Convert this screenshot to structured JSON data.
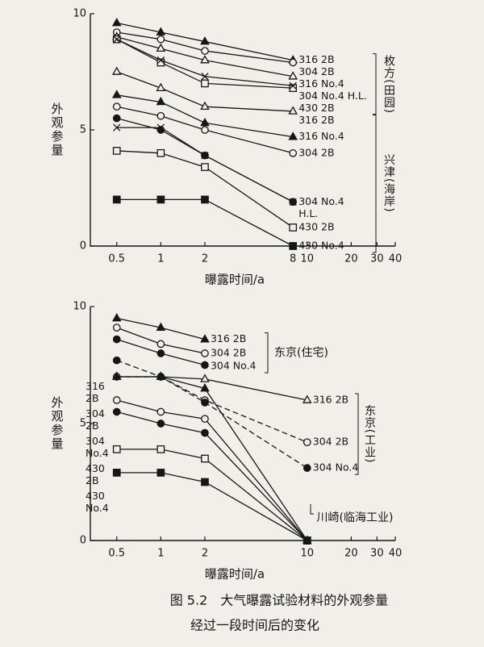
{
  "chart_data": [
    {
      "type": "line",
      "x_label": "曝露时间/a",
      "y_label": "外观参量",
      "xlog": true,
      "xlim": [
        0.33,
        40
      ],
      "ylim": [
        0,
        10
      ],
      "xticks": [
        0.5,
        1,
        2,
        8,
        10,
        20,
        30,
        40
      ],
      "yticks": [
        0,
        5,
        10
      ],
      "groups": [
        {
          "label": "枚方(田园)",
          "series": [
            {
              "name": "316 2B",
              "marker": "triangle",
              "filled": true,
              "x": [
                0.5,
                1,
                2,
                8
              ],
              "values": [
                9.6,
                9.2,
                8.8,
                8.0
              ]
            },
            {
              "name": "304 2B",
              "marker": "circle",
              "filled": false,
              "x": [
                0.5,
                1,
                2,
                8
              ],
              "values": [
                9.2,
                8.9,
                8.4,
                7.9
              ]
            },
            {
              "name": "316 No.4",
              "marker": "triangle",
              "filled": false,
              "x": [
                0.5,
                1,
                2,
                8
              ],
              "values": [
                9.0,
                8.5,
                8.0,
                7.3
              ]
            },
            {
              "name": "430 2B",
              "marker": "square",
              "filled": false,
              "x": [
                0.5,
                1,
                2,
                8
              ],
              "values": [
                8.9,
                7.9,
                7.0,
                6.8
              ]
            },
            {
              "name": "304 No.4 H.L.",
              "marker": "cross",
              "filled": false,
              "x": [
                0.5,
                1,
                2,
                8
              ],
              "values": [
                8.9,
                8.0,
                7.3,
                6.9
              ]
            }
          ]
        },
        {
          "label": "兴津(海岸)",
          "series": [
            {
              "name": "316 2B",
              "marker": "triangle",
              "filled": false,
              "x": [
                0.5,
                1,
                2,
                8
              ],
              "values": [
                7.5,
                6.8,
                6.0,
                5.8
              ]
            },
            {
              "name": "316 No.4",
              "marker": "triangle",
              "filled": true,
              "x": [
                0.5,
                1,
                2,
                8
              ],
              "values": [
                6.5,
                6.2,
                5.3,
                4.7
              ]
            },
            {
              "name": "304 2B",
              "marker": "circle",
              "filled": false,
              "x": [
                0.5,
                1,
                2,
                8
              ],
              "values": [
                6.0,
                5.6,
                5.0,
                4.0
              ]
            },
            {
              "name": "304 No.4",
              "marker": "circle",
              "filled": true,
              "x": [
                0.5,
                1,
                2,
                8
              ],
              "values": [
                5.5,
                5.0,
                3.9,
                1.9
              ]
            },
            {
              "name": "H.L.",
              "marker": "cross",
              "filled": false,
              "x": [
                0.5,
                1,
                2,
                8
              ],
              "values": [
                5.1,
                5.1,
                3.9,
                1.9
              ]
            },
            {
              "name": "430 2B",
              "marker": "square",
              "filled": false,
              "x": [
                0.5,
                1,
                2,
                8
              ],
              "values": [
                4.1,
                4.0,
                3.4,
                0.8
              ]
            },
            {
              "name": "430 No.4",
              "marker": "square",
              "filled": true,
              "x": [
                0.5,
                1,
                2,
                8
              ],
              "values": [
                2.0,
                2.0,
                2.0,
                0
              ]
            }
          ]
        }
      ]
    },
    {
      "type": "line",
      "x_label": "曝露时间/a",
      "y_label": "外观参量",
      "xlog": true,
      "xlim": [
        0.33,
        40
      ],
      "ylim": [
        0,
        10
      ],
      "xticks": [
        0.5,
        1,
        2,
        10,
        20,
        30,
        40
      ],
      "yticks": [
        0,
        5,
        10
      ],
      "groups": [
        {
          "label": "东京(住宅)",
          "series": [
            {
              "name": "316 2B",
              "marker": "triangle",
              "filled": true,
              "x": [
                0.5,
                1,
                2
              ],
              "values": [
                9.5,
                9.1,
                8.6
              ]
            },
            {
              "name": "304 2B",
              "marker": "circle",
              "filled": false,
              "x": [
                0.5,
                1,
                2
              ],
              "values": [
                9.1,
                8.4,
                8.0
              ]
            },
            {
              "name": "304 No.4",
              "marker": "circle",
              "filled": true,
              "x": [
                0.5,
                1,
                2
              ],
              "values": [
                8.6,
                8.0,
                7.5
              ]
            }
          ]
        },
        {
          "label": "东京(工业)",
          "series": [
            {
              "name": "316 2B",
              "marker": "triangle",
              "filled": false,
              "x": [
                0.5,
                1,
                2,
                10
              ],
              "values": [
                7.0,
                7.0,
                6.9,
                6.0
              ]
            },
            {
              "name": "304 2B",
              "marker": "circle",
              "filled": false,
              "dashed": true,
              "x": [
                0.5,
                1,
                2,
                10
              ],
              "values": [
                7.0,
                7.0,
                6.0,
                4.2
              ]
            },
            {
              "name": "304 No.4",
              "marker": "circle",
              "filled": true,
              "dashed": true,
              "x": [
                0.5,
                1,
                2,
                10
              ],
              "values": [
                7.7,
                7.0,
                5.9,
                3.1
              ]
            }
          ]
        },
        {
          "label": "川崎(临海工业)",
          "series": [
            {
              "name": "316 2B",
              "marker": "triangle",
              "filled": true,
              "x": [
                0.5,
                1,
                2,
                10
              ],
              "values": [
                7.0,
                7.0,
                6.5,
                0
              ]
            },
            {
              "name": "304 2B",
              "marker": "circle",
              "filled": false,
              "x": [
                0.5,
                1,
                2,
                10
              ],
              "values": [
                6.0,
                5.5,
                5.2,
                0
              ]
            },
            {
              "name": "304 No.4",
              "marker": "circle",
              "filled": true,
              "x": [
                0.5,
                1,
                2,
                10
              ],
              "values": [
                5.5,
                5.0,
                4.6,
                0
              ]
            },
            {
              "name": "430 2B",
              "marker": "square",
              "filled": false,
              "x": [
                0.5,
                1,
                2,
                10
              ],
              "values": [
                3.9,
                3.9,
                3.5,
                0
              ]
            },
            {
              "name": "430 No.4",
              "marker": "square",
              "filled": true,
              "x": [
                0.5,
                1,
                2,
                10
              ],
              "values": [
                2.9,
                2.9,
                2.5,
                0
              ]
            }
          ]
        }
      ]
    }
  ],
  "figure_caption": [
    "图 5.2　大气曝露试验材料的外观参量",
    "经过一段时间后的变化"
  ]
}
